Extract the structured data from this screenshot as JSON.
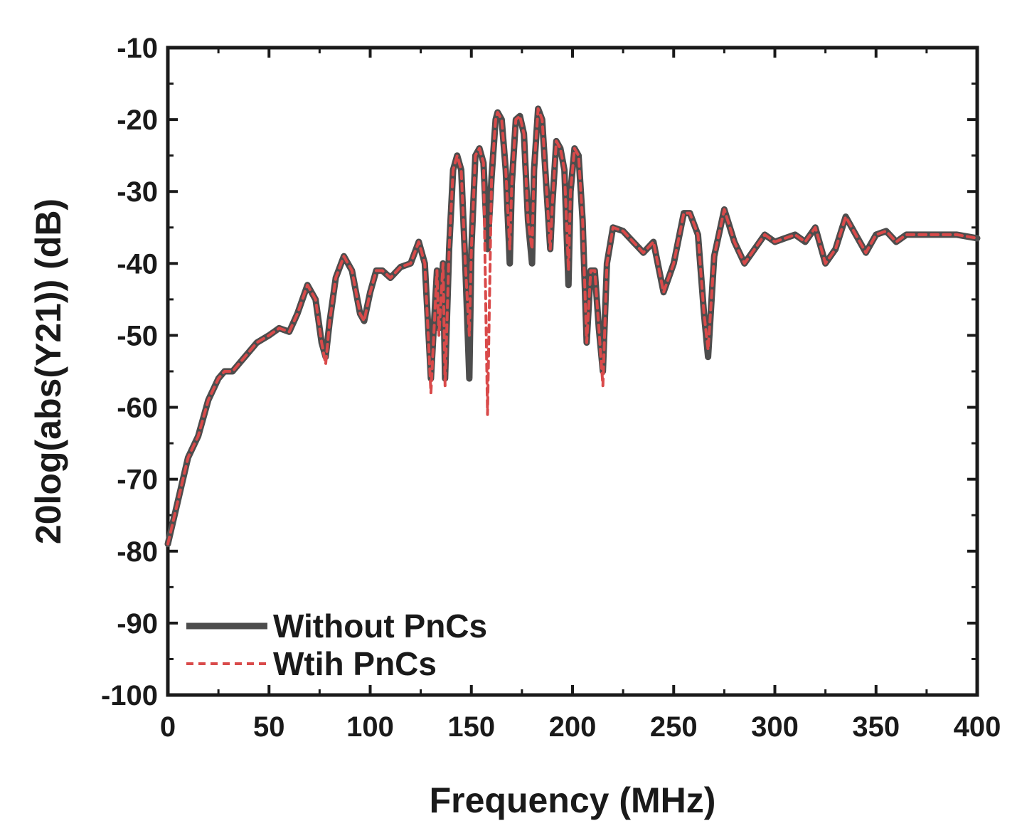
{
  "chart_data": {
    "type": "line",
    "xlabel": "Frequency (MHz)",
    "ylabel": "20log(abs(Y21)) (dB)",
    "xlim": [
      0,
      400
    ],
    "ylim": [
      -100,
      -10
    ],
    "xticks": [
      0,
      50,
      100,
      150,
      200,
      250,
      300,
      350,
      400
    ],
    "yticks": [
      -10,
      -20,
      -30,
      -40,
      -50,
      -60,
      -70,
      -80,
      -90,
      -100
    ],
    "grid": false,
    "legend_position": "bottom-left",
    "series": [
      {
        "name": "Without PnCs",
        "color": "#4d4d4d",
        "style": "solid",
        "x": [
          0,
          5,
          10,
          15,
          20,
          25,
          28,
          32,
          38,
          44,
          50,
          55,
          60,
          64,
          69,
          73,
          76,
          78,
          80,
          83,
          87,
          91,
          95,
          97,
          100,
          103,
          106,
          110,
          115,
          120,
          124,
          127,
          130,
          133,
          134,
          136,
          137,
          139,
          141,
          143,
          145,
          147,
          149,
          150,
          152,
          154,
          156,
          158,
          160,
          162,
          163,
          165,
          167,
          169,
          170,
          172,
          174,
          176,
          178,
          180,
          181,
          183,
          185,
          187,
          189,
          190,
          192,
          194,
          196,
          198,
          199,
          201,
          203,
          205,
          207,
          209,
          211,
          213,
          215,
          217,
          220,
          225,
          230,
          235,
          240,
          245,
          250,
          255,
          258,
          262,
          265,
          267,
          270,
          275,
          280,
          285,
          290,
          295,
          300,
          305,
          310,
          315,
          320,
          325,
          330,
          335,
          340,
          345,
          350,
          355,
          360,
          365,
          370,
          380,
          390,
          400
        ],
        "y": [
          -79,
          -73,
          -67,
          -64,
          -59,
          -56,
          -55,
          -55,
          -53,
          -51,
          -50,
          -49,
          -49.5,
          -47,
          -43,
          -45,
          -51,
          -53,
          -48,
          -42,
          -39,
          -41,
          -47,
          -48,
          -44,
          -41,
          -41,
          -42,
          -40.5,
          -40,
          -37,
          -40,
          -56,
          -41,
          -49,
          -40,
          -56,
          -38,
          -27,
          -25,
          -27,
          -40,
          -56,
          -38,
          -25,
          -24,
          -26,
          -38,
          -28,
          -20,
          -19,
          -20,
          -27,
          -40,
          -29,
          -20,
          -19.5,
          -22,
          -34,
          -40,
          -27,
          -18.5,
          -20,
          -29,
          -38,
          -32,
          -23,
          -24,
          -27,
          -43,
          -30,
          -24,
          -25,
          -34,
          -51,
          -41,
          -41,
          -49,
          -55,
          -40,
          -35,
          -35.5,
          -37,
          -38.5,
          -37,
          -44,
          -40,
          -33,
          -33,
          -36,
          -47,
          -53,
          -39,
          -32.5,
          -37,
          -40,
          -38,
          -36,
          -37,
          -36.5,
          -36,
          -37,
          -35,
          -40,
          -38,
          -33.5,
          -36,
          -38.5,
          -36,
          -35.5,
          -37,
          -36,
          -36,
          -36,
          -36,
          -36.5
        ]
      },
      {
        "name": "Wtih PnCs",
        "color": "#d94a4a",
        "style": "dashed",
        "x": [
          0,
          5,
          10,
          15,
          20,
          25,
          28,
          32,
          38,
          44,
          50,
          55,
          60,
          64,
          69,
          73,
          76,
          78,
          80,
          83,
          87,
          91,
          95,
          97,
          100,
          103,
          106,
          110,
          115,
          120,
          124,
          127,
          130,
          133,
          134,
          136,
          137,
          139,
          141,
          143,
          145,
          147,
          149,
          150,
          152,
          154,
          156,
          158,
          160,
          162,
          163,
          165,
          167,
          169,
          170,
          172,
          174,
          176,
          178,
          180,
          181,
          183,
          185,
          187,
          189,
          190,
          192,
          194,
          196,
          198,
          199,
          201,
          203,
          205,
          207,
          209,
          211,
          213,
          215,
          217,
          220,
          225,
          230,
          235,
          240,
          245,
          250,
          255,
          258,
          262,
          265,
          267,
          270,
          275,
          280,
          285,
          290,
          295,
          300,
          305,
          310,
          315,
          320,
          325,
          330,
          335,
          340,
          345,
          350,
          355,
          360,
          365,
          370,
          380,
          390,
          400
        ],
        "y": [
          -79,
          -73,
          -67,
          -64,
          -59,
          -56,
          -55,
          -55,
          -53,
          -51,
          -50,
          -49,
          -49.5,
          -47,
          -43,
          -45,
          -51,
          -54,
          -48,
          -42,
          -39,
          -41,
          -47,
          -48,
          -44,
          -41,
          -41,
          -42,
          -40.5,
          -40,
          -37,
          -40,
          -58,
          -41,
          -50,
          -40,
          -57,
          -38,
          -27,
          -25,
          -27,
          -40,
          -50,
          -38,
          -25,
          -24,
          -26,
          -61,
          -28,
          -20,
          -19,
          -20,
          -27,
          -38,
          -29,
          -20,
          -19.5,
          -22,
          -34,
          -38,
          -27,
          -18.5,
          -20,
          -29,
          -38,
          -32,
          -23,
          -24,
          -27,
          -41,
          -30,
          -24,
          -25,
          -34,
          -51,
          -41,
          -41,
          -49,
          -57,
          -40,
          -35,
          -35.5,
          -37,
          -38.5,
          -37,
          -44,
          -40,
          -33,
          -33,
          -36,
          -47,
          -52,
          -39,
          -32.5,
          -37,
          -40,
          -38,
          -36,
          -37,
          -36.5,
          -36,
          -37,
          -35,
          -40,
          -38,
          -33.5,
          -36,
          -38.5,
          -36,
          -35.5,
          -37,
          -36,
          -36,
          -36,
          -36,
          -36.5
        ]
      }
    ]
  }
}
